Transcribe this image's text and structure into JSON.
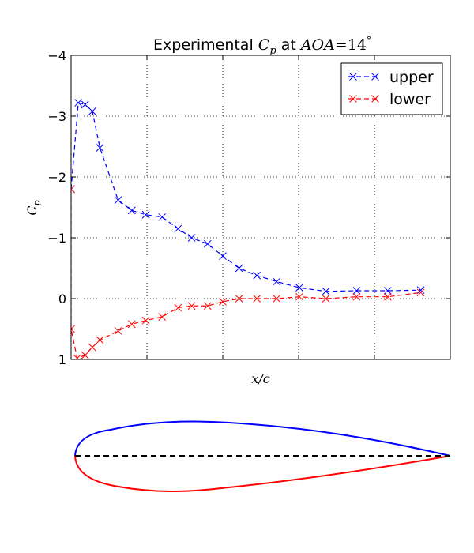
{
  "chart_data": {
    "type": "line",
    "title": "Experimental Cp at AOA=14°",
    "title_parts": {
      "prefix": "Experimental ",
      "cp_main": "C",
      "cp_sub": "p",
      "middle": " at ",
      "aoa": "AOA",
      "eq": "=14",
      "deg": "°"
    },
    "xlabel": "x/c",
    "ylabel_main": "C",
    "ylabel_sub": "p",
    "xlim": [
      0,
      1
    ],
    "ylim": [
      1,
      -4
    ],
    "y_inverted": true,
    "yticks": [
      1,
      0,
      -1,
      -2,
      -3,
      -4
    ],
    "ytick_labels": [
      "1",
      "0",
      "−1",
      "−2",
      "−3",
      "−4"
    ],
    "xtick_positions": [
      0.2,
      0.4,
      0.6,
      0.8
    ],
    "grid": true,
    "legend_position": "top-right",
    "series": [
      {
        "name": "upper",
        "color": "#0000ff",
        "linestyle": "dashed",
        "marker": "x",
        "x": [
          0.0,
          0.019,
          0.037,
          0.056,
          0.076,
          0.124,
          0.16,
          0.197,
          0.24,
          0.282,
          0.318,
          0.36,
          0.4,
          0.443,
          0.49,
          0.542,
          0.602,
          0.672,
          0.753,
          0.835,
          0.922
        ],
        "y": [
          -1.8,
          -3.22,
          -3.19,
          -3.08,
          -2.48,
          -1.62,
          -1.45,
          -1.38,
          -1.34,
          -1.15,
          -1.0,
          -0.9,
          -0.7,
          -0.5,
          -0.38,
          -0.28,
          -0.18,
          -0.12,
          -0.13,
          -0.13,
          -0.14
        ]
      },
      {
        "name": "lower",
        "color": "#ff0000",
        "linestyle": "dashed",
        "marker": "x",
        "x": [
          0.0,
          0.0,
          0.016,
          0.037,
          0.056,
          0.076,
          0.124,
          0.16,
          0.197,
          0.24,
          0.282,
          0.318,
          0.36,
          0.4,
          0.443,
          0.49,
          0.542,
          0.602,
          0.672,
          0.753,
          0.835,
          0.922
        ],
        "y": [
          -1.8,
          0.5,
          0.98,
          0.93,
          0.8,
          0.68,
          0.53,
          0.42,
          0.36,
          0.3,
          0.15,
          0.12,
          0.12,
          0.05,
          0.0,
          0.0,
          0.0,
          -0.03,
          0.0,
          -0.03,
          -0.03,
          -0.1
        ]
      }
    ]
  },
  "airfoil": {
    "upper_color": "#0000ff",
    "lower_color": "#ff0000",
    "chord_color": "#000000"
  }
}
